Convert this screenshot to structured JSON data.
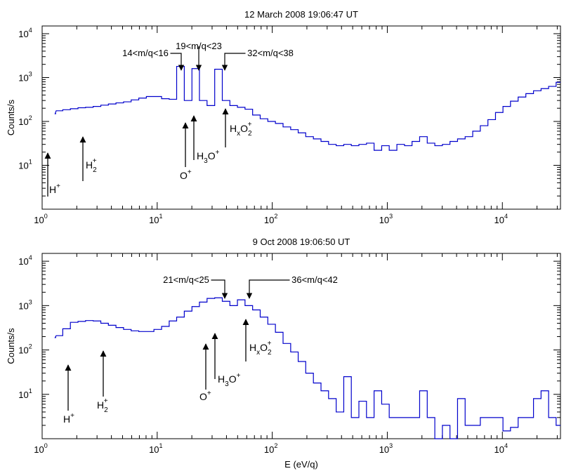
{
  "chart_data": [
    {
      "type": "line",
      "title": "12 March 2008 19:06:47 UT",
      "ylabel": "Counts/s",
      "xlabel": "",
      "xscale": "log",
      "yscale": "log",
      "xlim": [
        1,
        32000
      ],
      "ylim": [
        1,
        15000
      ],
      "grid": false,
      "x_tick_labels": [
        "10^0",
        "10^1",
        "10^2",
        "10^3",
        "10^4"
      ],
      "y_tick_labels": [
        "10^1",
        "10^2",
        "10^3",
        "10^4"
      ],
      "series": [
        {
          "color": "#0000cc",
          "x": [
            1.2,
            1.4,
            1.63,
            1.9,
            2.21,
            2.57,
            3.0,
            3.49,
            4.06,
            4.73,
            5.5,
            6.41,
            7.46,
            8.68,
            10.1,
            11.8,
            13.7,
            15.9,
            18.6,
            21.6,
            25.1,
            29.3,
            34.1,
            39.7,
            46.2,
            53.7,
            62.6,
            72.8,
            84.8,
            98.7,
            115,
            134,
            156,
            181,
            211,
            246,
            286,
            333,
            388,
            451,
            525,
            611,
            711,
            828,
            964,
            1120,
            1310,
            1520,
            1770,
            2060,
            2400,
            2790,
            3250,
            3780,
            4400,
            5120,
            5960,
            6940,
            8080,
            9400,
            10900,
            12700,
            14800,
            17300,
            20100,
            23400,
            27200,
            31600
          ],
          "y": [
            150,
            175,
            185,
            195,
            205,
            210,
            220,
            235,
            250,
            265,
            280,
            310,
            340,
            370,
            370,
            330,
            320,
            1800,
            300,
            1600,
            300,
            230,
            1550,
            300,
            230,
            210,
            190,
            140,
            115,
            100,
            90,
            75,
            65,
            55,
            45,
            40,
            35,
            30,
            28,
            30,
            28,
            30,
            32,
            22,
            28,
            22,
            30,
            28,
            35,
            45,
            32,
            28,
            30,
            35,
            40,
            45,
            60,
            80,
            110,
            160,
            220,
            290,
            360,
            430,
            500,
            560,
            630,
            780
          ]
        }
      ],
      "annotations": [
        {
          "text": "14<m/q<16",
          "x": 16
        },
        {
          "text": "19<m/q<23",
          "x": 22
        },
        {
          "text": "32<m/q<38",
          "x": 38
        },
        {
          "text": "H",
          "sub": "",
          "sup": "+",
          "x": 1.05
        },
        {
          "text": "H",
          "sub": "2",
          "sup": "+",
          "x": 2.2
        },
        {
          "text": "O",
          "sub": "",
          "sup": "+",
          "x": 17
        },
        {
          "text": "H",
          "sub": "3",
          "mid": "O",
          "sup": "+",
          "x": 20
        },
        {
          "text": "H",
          "sub": "x",
          "mid": "O",
          "sub2": "2",
          "sup": "+",
          "x": 40
        }
      ]
    },
    {
      "type": "line",
      "title": "9 Oct 2008 19:06:50 UT",
      "ylabel": "Counts/s",
      "xlabel": "E (eV/q)",
      "xscale": "log",
      "yscale": "log",
      "xlim": [
        1,
        32000
      ],
      "ylim": [
        1,
        15000
      ],
      "grid": false,
      "x_tick_labels": [
        "10^0",
        "10^1",
        "10^2",
        "10^3",
        "10^4"
      ],
      "y_tick_labels": [
        "10^1",
        "10^2",
        "10^3",
        "10^4"
      ],
      "series": [
        {
          "color": "#0000cc",
          "x": [
            1.2,
            1.4,
            1.63,
            1.9,
            2.21,
            2.57,
            3.0,
            3.49,
            4.06,
            4.73,
            5.5,
            6.41,
            7.46,
            8.68,
            10.1,
            11.8,
            13.7,
            15.9,
            18.6,
            21.6,
            25.1,
            29.3,
            34.1,
            39.7,
            46.2,
            53.7,
            62.6,
            72.8,
            84.8,
            98.7,
            115,
            134,
            156,
            181,
            211,
            246,
            286,
            333,
            388,
            451,
            525,
            611,
            711,
            828,
            964,
            1120,
            1310,
            1520,
            1770,
            2060,
            2400,
            2790,
            3250,
            3780,
            4400,
            5120,
            5960,
            6940,
            8080,
            9400,
            10900,
            12700,
            14800,
            17300,
            20100,
            23400,
            27200,
            31600
          ],
          "y": [
            190,
            210,
            300,
            420,
            440,
            460,
            450,
            400,
            360,
            320,
            290,
            270,
            260,
            260,
            290,
            340,
            450,
            550,
            750,
            950,
            1200,
            1450,
            1500,
            1250,
            1000,
            1350,
            1000,
            800,
            550,
            380,
            250,
            140,
            90,
            55,
            30,
            18,
            12,
            8,
            4,
            25,
            3,
            7,
            3,
            12,
            6,
            3,
            3,
            3,
            3,
            12,
            3,
            1,
            2,
            1,
            8,
            2,
            2,
            3,
            3,
            3,
            1.5,
            1.8,
            3,
            3,
            8,
            12,
            3,
            2
          ]
        }
      ],
      "annotations": [
        {
          "text": "21<m/q<25",
          "x": 38
        },
        {
          "text": "36<m/q<42",
          "x": 60
        },
        {
          "text": "H",
          "sub": "",
          "sup": "+",
          "x": 1.6
        },
        {
          "text": "H",
          "sub": "2",
          "sup": "+",
          "x": 3.3
        },
        {
          "text": "O",
          "sub": "",
          "sup": "+",
          "x": 27
        },
        {
          "text": "H",
          "sub": "3",
          "mid": "O",
          "sup": "+",
          "x": 30
        },
        {
          "text": "H",
          "sub": "x",
          "mid": "O",
          "sub2": "2",
          "sup": "+",
          "x": 58
        }
      ]
    }
  ]
}
